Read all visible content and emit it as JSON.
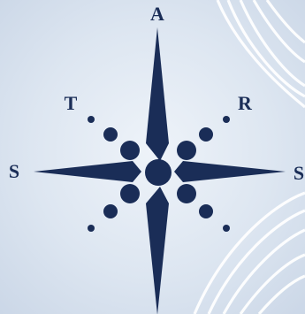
{
  "logo": {
    "letters": {
      "top": "A",
      "upper_left": "T",
      "upper_right": "R",
      "left": "S",
      "right": "S"
    }
  },
  "colors": {
    "background": "#d7e2ef",
    "mark": "#1a2d57",
    "arcs": "#ffffff"
  }
}
